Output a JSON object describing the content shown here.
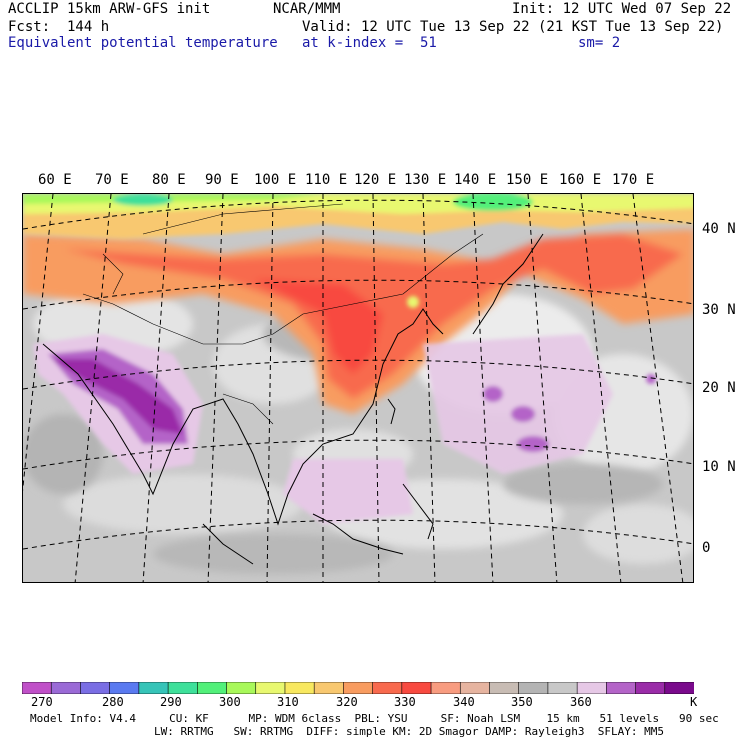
{
  "header": {
    "model": "ACCLIP 15km ARW-GFS init",
    "center": "NCAR/MMM",
    "init": "Init: 12 UTC Wed 07 Sep 22",
    "fcst": "Fcst:  144 h",
    "valid": "Valid: 12 UTC Tue 13 Sep 22 (21 KST Tue 13 Sep 22)",
    "field": "Equivalent potential temperature",
    "level": "at k-index =  51",
    "smooth": "sm= 2"
  },
  "map": {
    "longitude_labels": [
      "60 E",
      "70 E",
      "80 E",
      "90 E",
      "100 E",
      "110 E",
      "120 E",
      "130 E",
      "140 E",
      "150 E",
      "160 E",
      "170 E"
    ],
    "latitude_labels": [
      "40 N",
      "30 N",
      "20 N",
      "10 N",
      "0"
    ]
  },
  "colorbar": {
    "colors": [
      "#c050c8",
      "#9a6ad6",
      "#7a6ee4",
      "#5a7af0",
      "#36c4b8",
      "#3ee09a",
      "#52f07a",
      "#a8f85a",
      "#e8f870",
      "#f8e860",
      "#f8c870",
      "#f89c60",
      "#f86a4e",
      "#f84a40",
      "#f89c80",
      "#e6b4a0",
      "#c8bcb4",
      "#b4b4b4",
      "#c8c8c8",
      "#e6c8e6",
      "#b464c8",
      "#9a2ca8",
      "#7a0a8c"
    ],
    "tick_labels": [
      "270",
      "280",
      "290",
      "300",
      "310",
      "320",
      "330",
      "340",
      "350",
      "360"
    ],
    "units": "K"
  },
  "footer": {
    "line1": "Model Info: V4.4     CU: KF      MP: WDM 6class  PBL: YSU     SF: Noah LSM    15 km   51 levels   90 sec",
    "line2": "LW: RRTMG   SW: RRTMG  DIFF: simple KM: 2D Smagor DAMP: Rayleigh3  SFLAY: MM5"
  }
}
